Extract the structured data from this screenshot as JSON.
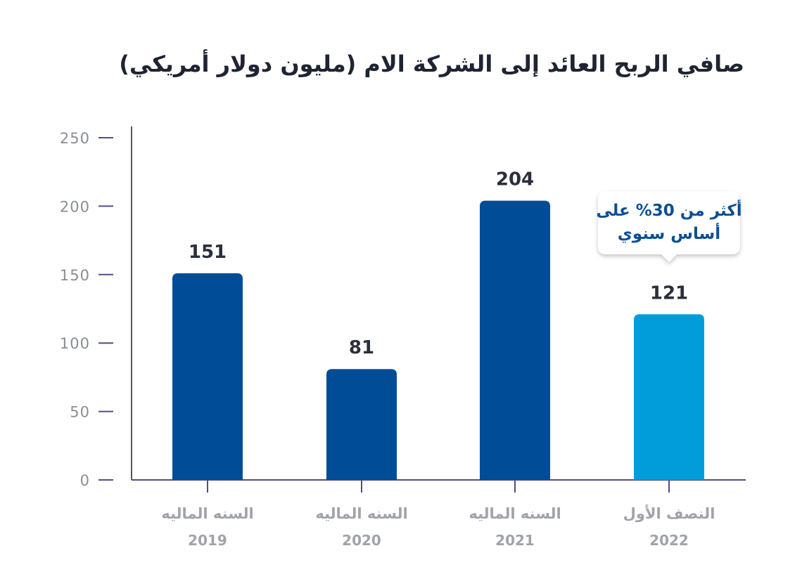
{
  "chart_data": {
    "type": "bar",
    "title": "صافي الربح العائد إلى الشركة الام (مليون دولار أمريكي)",
    "categories": [
      {
        "line1": "السنه الماليه",
        "line2": "2019"
      },
      {
        "line1": "السنه الماليه",
        "line2": "2020"
      },
      {
        "line1": "السنه الماليه",
        "line2": "2021"
      },
      {
        "line1": "النصف الأول",
        "line2": "2022"
      }
    ],
    "values": [
      151,
      81,
      204,
      121
    ],
    "value_labels": [
      "151",
      "81",
      "204",
      "121"
    ],
    "bar_colors": [
      "#004c97",
      "#004c97",
      "#004c97",
      "#009ddb"
    ],
    "ylim": [
      0,
      250
    ],
    "yticks": [
      0,
      50,
      100,
      150,
      200,
      250
    ],
    "ytick_labels": [
      "0",
      "50",
      "100",
      "150",
      "200",
      "250"
    ],
    "grid": false,
    "annotation": {
      "category_index": 3,
      "lines": [
        "أكثر من 30% على",
        "أساس سنوي"
      ],
      "text_color": "#0a4f95"
    },
    "axis_color": "#534d86"
  }
}
